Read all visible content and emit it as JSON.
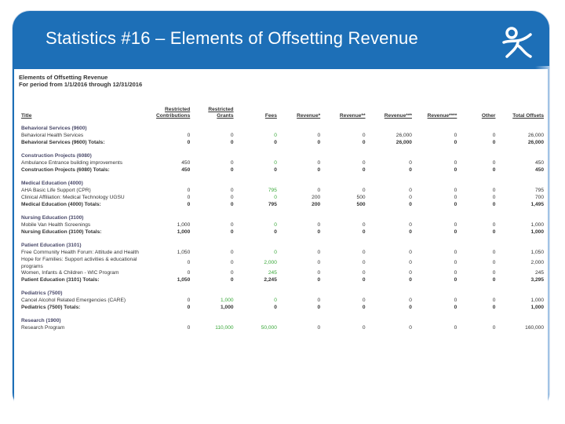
{
  "slide": {
    "title": "Statistics #16 – Elements of Offsetting Revenue",
    "colors": {
      "header_blue": "#1d6fb7",
      "text_gray": "#333333",
      "highlight_green": "#3aa83a"
    },
    "logo_icon": "stylized-figure-logo"
  },
  "report": {
    "heading_line1": "Elements of Offsetting Revenue",
    "heading_line2": "For period from 1/1/2016 through 12/31/2016",
    "columns": [
      "Title",
      "Restricted Contributions",
      "Restricted Grants",
      "Fees",
      "Revenue*",
      "Revenue**",
      "Revenue***",
      "Revenue****",
      "Other",
      "Total Offsets"
    ],
    "rows": [
      {
        "type": "cat",
        "label": "Behavioral Services (9600)"
      },
      {
        "type": "row",
        "label": "Behavioral Health Services",
        "values": [
          "0",
          "0",
          "0",
          "0",
          "0",
          "26,000",
          "0",
          "0",
          "26,000"
        ]
      },
      {
        "type": "total",
        "label": "Behavioral Services (9600) Totals:",
        "values": [
          "0",
          "0",
          "0",
          "0",
          "0",
          "26,000",
          "0",
          "0",
          "26,000"
        ]
      },
      {
        "type": "cat",
        "label": "Construction Projects (6080)"
      },
      {
        "type": "row",
        "label": "Ambulance Entrance building improvements",
        "values": [
          "450",
          "0",
          "0",
          "0",
          "0",
          "0",
          "0",
          "0",
          "450"
        ]
      },
      {
        "type": "total",
        "label": "Construction Projects (6080) Totals:",
        "values": [
          "450",
          "0",
          "0",
          "0",
          "0",
          "0",
          "0",
          "0",
          "450"
        ]
      },
      {
        "type": "cat",
        "label": "Medical Education (4000)"
      },
      {
        "type": "row",
        "label": "AHA Basic Life Support (CPR)",
        "values": [
          "0",
          "0",
          "795",
          "0",
          "0",
          "0",
          "0",
          "0",
          "795"
        ]
      },
      {
        "type": "row",
        "label": "Clinical Affiliation: Medical Technology UGSU",
        "values": [
          "0",
          "0",
          "0",
          "200",
          "500",
          "0",
          "0",
          "0",
          "700"
        ]
      },
      {
        "type": "total",
        "label": "Medical Education (4000) Totals:",
        "values": [
          "0",
          "0",
          "795",
          "200",
          "500",
          "0",
          "0",
          "0",
          "1,495"
        ]
      },
      {
        "type": "cat",
        "label": "Nursing Education (3100)"
      },
      {
        "type": "row",
        "label": "Mobile Van Health Screenings",
        "values": [
          "1,000",
          "0",
          "0",
          "0",
          "0",
          "0",
          "0",
          "0",
          "1,000"
        ]
      },
      {
        "type": "total",
        "label": "Nursing Education (3100) Totals:",
        "values": [
          "1,000",
          "0",
          "0",
          "0",
          "0",
          "0",
          "0",
          "0",
          "1,000"
        ]
      },
      {
        "type": "cat",
        "label": "Patient Education (3101)"
      },
      {
        "type": "row",
        "label": "Free Community Health Forum: Attitude and Health",
        "values": [
          "1,050",
          "0",
          "0",
          "0",
          "0",
          "0",
          "0",
          "0",
          "1,050"
        ]
      },
      {
        "type": "row",
        "label": "Hope for Families: Support activities & educational programs",
        "values": [
          "0",
          "0",
          "2,000",
          "0",
          "0",
          "0",
          "0",
          "0",
          "2,000"
        ]
      },
      {
        "type": "row",
        "label": "Women, Infants & Children - WIC Program",
        "values": [
          "0",
          "0",
          "245",
          "0",
          "0",
          "0",
          "0",
          "0",
          "245"
        ]
      },
      {
        "type": "total",
        "label": "Patient Education (3101) Totals:",
        "values": [
          "1,050",
          "0",
          "2,245",
          "0",
          "0",
          "0",
          "0",
          "0",
          "3,295"
        ]
      },
      {
        "type": "cat",
        "label": "Pediatrics (7500)"
      },
      {
        "type": "row",
        "label": "Cancel Alcohol Related Emergencies (CARE)",
        "values": [
          "0",
          "1,000",
          "0",
          "0",
          "0",
          "0",
          "0",
          "0",
          "1,000"
        ]
      },
      {
        "type": "total",
        "label": "Pediatrics (7500) Totals:",
        "values": [
          "0",
          "1,000",
          "0",
          "0",
          "0",
          "0",
          "0",
          "0",
          "1,000"
        ]
      },
      {
        "type": "cat",
        "label": "Research (1900)"
      },
      {
        "type": "row",
        "label": "Research Program",
        "values": [
          "0",
          "110,000",
          "50,000",
          "0",
          "0",
          "0",
          "0",
          "0",
          "160,000"
        ]
      }
    ]
  }
}
